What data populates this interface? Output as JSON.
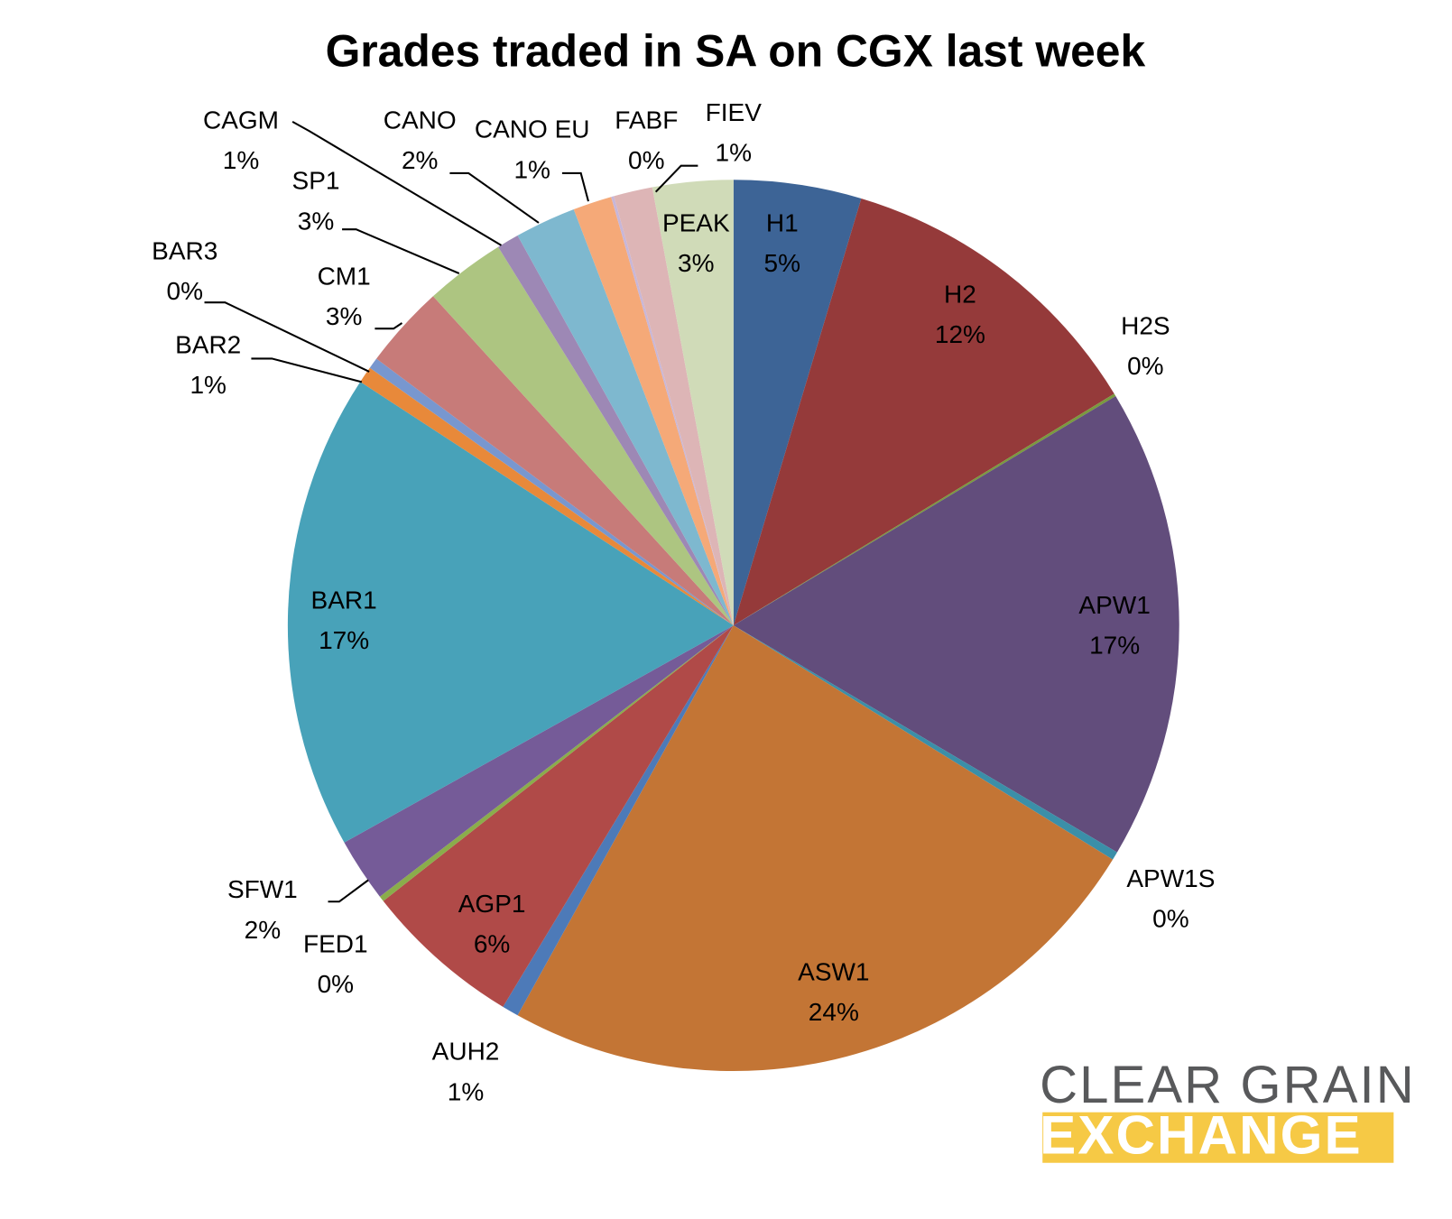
{
  "chart_data": {
    "type": "pie",
    "title": "Grades traded in SA on CGX last week",
    "categories": [
      "H1",
      "H2",
      "H2S",
      "APW1",
      "APW1S",
      "ASW1",
      "AUH2",
      "AGP1",
      "FED1",
      "SFW1",
      "BAR1",
      "BAR2",
      "BAR3",
      "CM1",
      "SP1",
      "CAGM",
      "CANO",
      "CANO EU",
      "FABF",
      "FIEV",
      "PEAK"
    ],
    "values": [
      4.6,
      11.6,
      0.1,
      17.0,
      0.3,
      24.1,
      0.6,
      5.7,
      0.2,
      2.3,
      17.2,
      0.6,
      0.4,
      3.0,
      2.9,
      0.8,
      2.2,
      1.4,
      0.1,
      1.4,
      2.9
    ],
    "value_labels": [
      "5%",
      "12%",
      "0%",
      "17%",
      "0%",
      "24%",
      "1%",
      "6%",
      "0%",
      "2%",
      "17%",
      "1%",
      "0%",
      "3%",
      "3%",
      "1%",
      "2%",
      "1%",
      "0%",
      "1%",
      "3%"
    ],
    "colors": [
      "#3d6496",
      "#953a3a",
      "#7a9a3e",
      "#624d7c",
      "#3b8fa8",
      "#c37535",
      "#4d7ab8",
      "#b04a48",
      "#8aad4b",
      "#755b98",
      "#48a2b9",
      "#e8893a",
      "#7897cf",
      "#c77b79",
      "#adc581",
      "#9d88b5",
      "#7eb8cf",
      "#f5a978",
      "#c7b6d8",
      "#ddb5b6",
      "#d0dbb8"
    ]
  },
  "logo": {
    "line1": "CLEAR GRAIN",
    "line2": "EXCHANGE"
  }
}
